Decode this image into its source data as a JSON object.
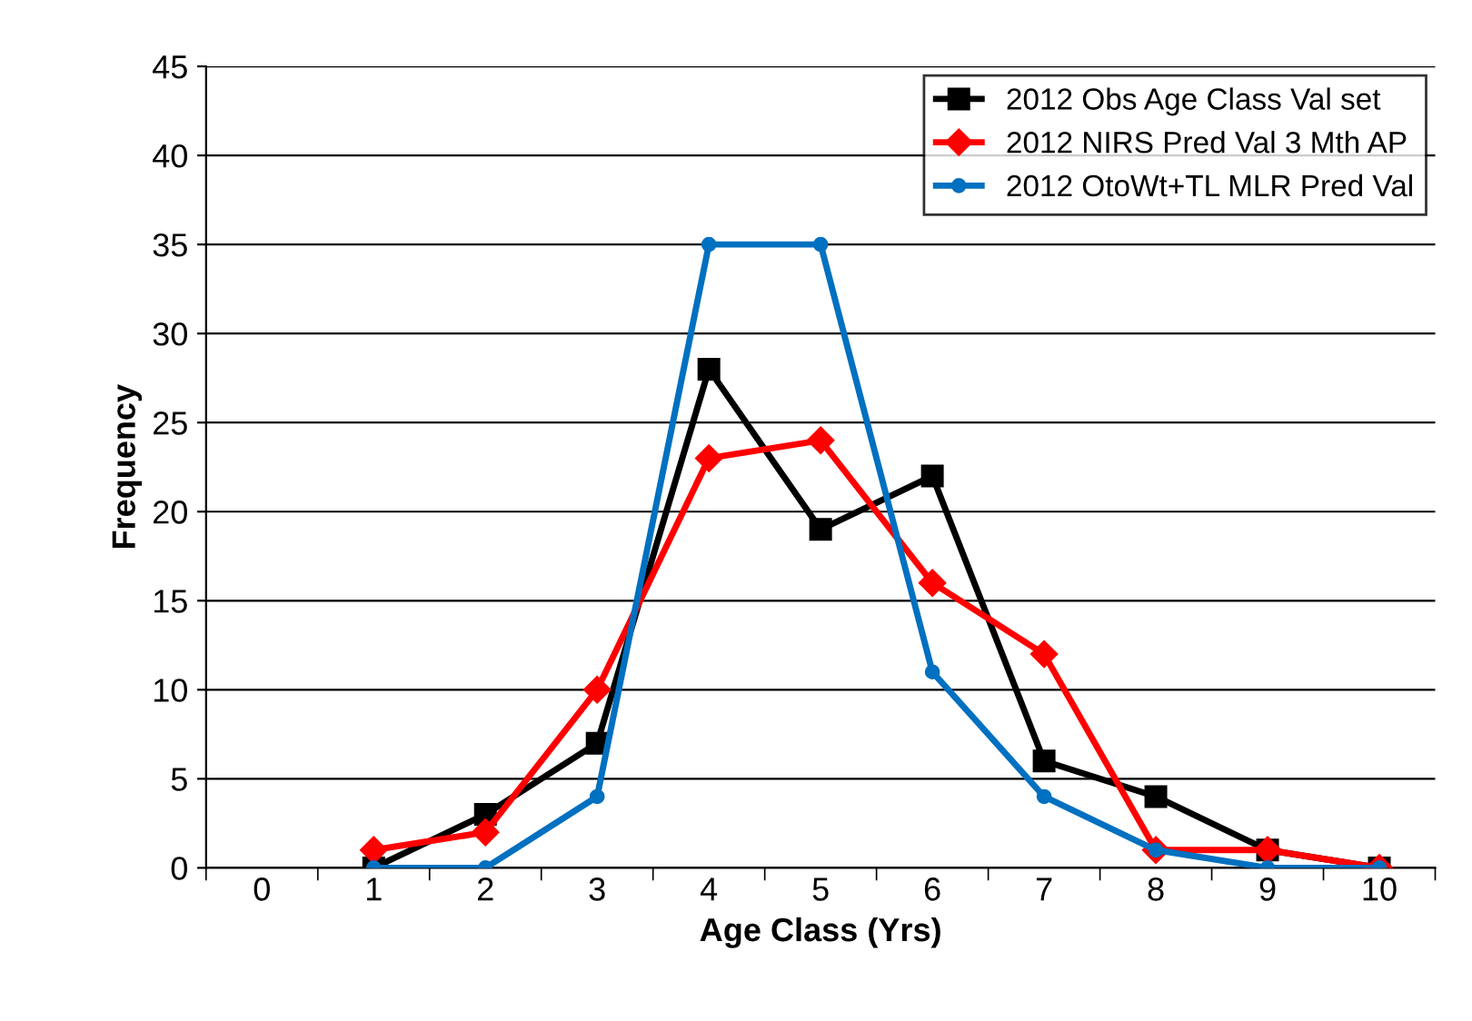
{
  "chart_data": {
    "type": "line",
    "xlabel": "Age Class (Yrs)",
    "ylabel": "Frequency",
    "categories": [
      "0",
      "1",
      "2",
      "3",
      "4",
      "5",
      "6",
      "7",
      "8",
      "9",
      "10"
    ],
    "series": [
      {
        "name": "2012 Obs Age Class Val set",
        "color": "#000000",
        "marker": "square",
        "values": [
          null,
          0,
          3,
          7,
          28,
          19,
          22,
          6,
          4,
          1,
          0
        ]
      },
      {
        "name": "2012 NIRS Pred Val 3 Mth AP",
        "color": "#ff0000",
        "marker": "diamond",
        "values": [
          null,
          1,
          2,
          10,
          23,
          24,
          16,
          12,
          1,
          1,
          0
        ]
      },
      {
        "name": "2012 OtoWt+TL MLR Pred Val",
        "color": "#0070c0",
        "marker": "circle",
        "values": [
          null,
          0,
          0,
          4,
          35,
          35,
          11,
          4,
          1,
          0,
          0
        ]
      }
    ],
    "ylim": [
      0,
      45
    ],
    "yticks": [
      0,
      5,
      10,
      15,
      20,
      25,
      30,
      35,
      40,
      45
    ],
    "grid": "y",
    "legend": "top right",
    "line_style": "solid"
  }
}
